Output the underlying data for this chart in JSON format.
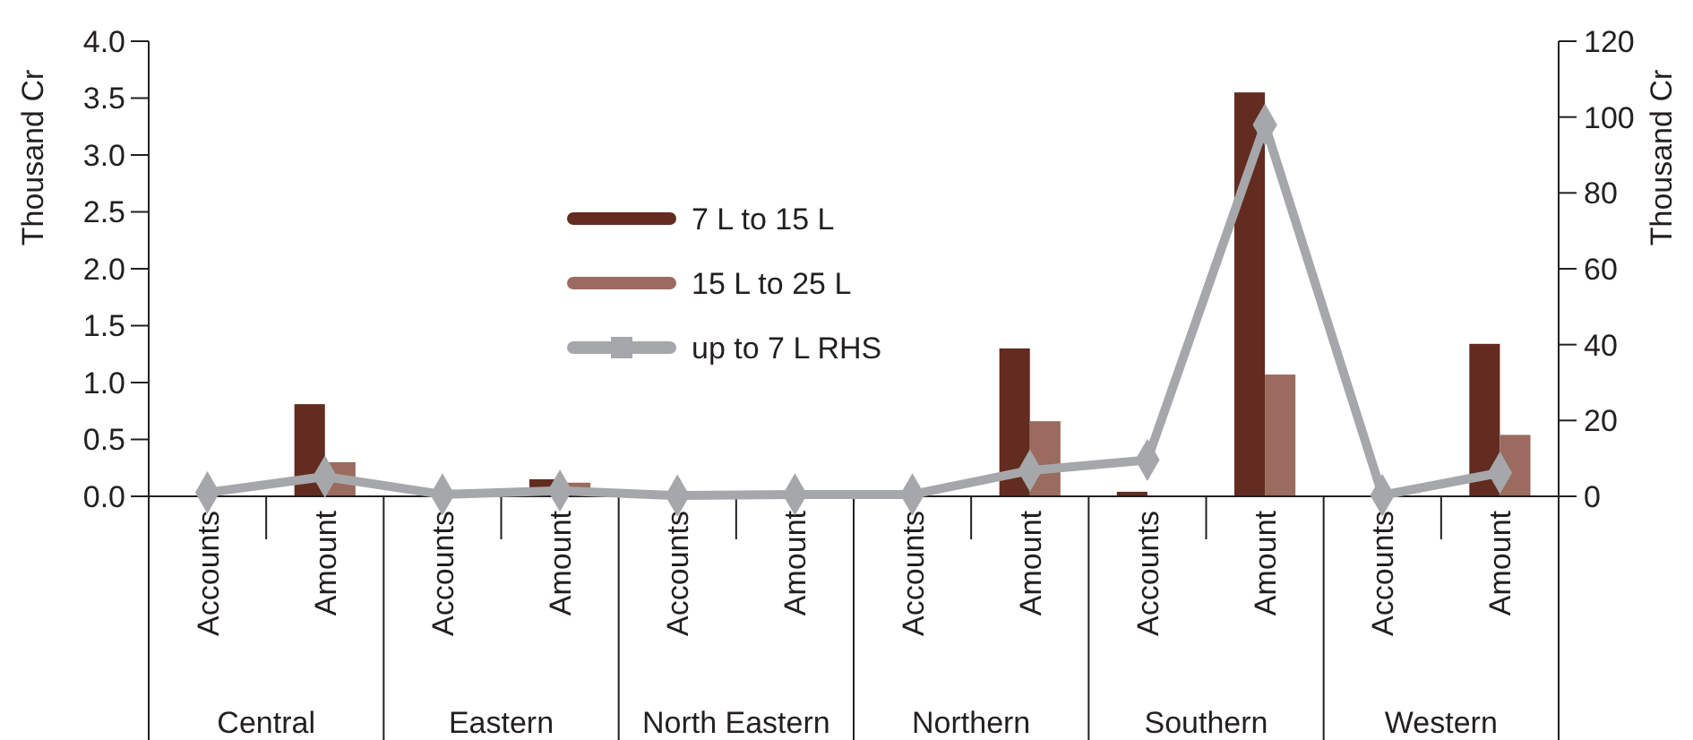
{
  "chart_data": {
    "type": "bar",
    "ylabel": "Thousand Cr",
    "y2label": "Thousand Cr",
    "categories": [
      "Accounts",
      "Amount",
      "Accounts",
      "Amount",
      "Accounts",
      "Amount",
      "Accounts",
      "Amount",
      "Accounts",
      "Amount",
      "Accounts",
      "Amount"
    ],
    "annotations": [
      "Central",
      "Eastern",
      "North Eastern",
      "Northern",
      "Southern",
      "Western"
    ],
    "series": [
      {
        "name": "7 L to 15 L",
        "color": "#622c20",
        "values": [
          0,
          0.81,
          0,
          0.15,
          0,
          null,
          0,
          1.3,
          0.04,
          3.55,
          0,
          1.34
        ]
      },
      {
        "name": "15 L to 25 L",
        "color": "#9a6b5e",
        "values": [
          0,
          0.3,
          0,
          0.12,
          0,
          null,
          0,
          0.66,
          0,
          1.07,
          0,
          0.54
        ]
      },
      {
        "name": "up to 7 L RHS",
        "type": "line",
        "axis": "y2",
        "color": "#a6a7aa",
        "marker": "diamond",
        "values": [
          1,
          5.2,
          0.5,
          1.5,
          0.2,
          0.5,
          0.5,
          6.8,
          9.6,
          98,
          0.3,
          6.2
        ]
      }
    ],
    "ylim": [
      0,
      4
    ],
    "yticks": [
      {
        "value": 0,
        "label": "0.0"
      },
      {
        "value": 0.5,
        "label": "0.5"
      },
      {
        "value": 1,
        "label": "1.0"
      },
      {
        "value": 1.5,
        "label": "1.5"
      },
      {
        "value": 2,
        "label": "2.0"
      },
      {
        "value": 2.5,
        "label": "2.5"
      },
      {
        "value": 3,
        "label": "3.0"
      },
      {
        "value": 3.5,
        "label": "3.5"
      },
      {
        "value": 4,
        "label": "4.0"
      }
    ],
    "y2lim": [
      0,
      120
    ],
    "y2ticks": [
      0,
      20,
      40,
      60,
      80,
      100,
      120
    ],
    "grid": false,
    "legend": "center"
  }
}
